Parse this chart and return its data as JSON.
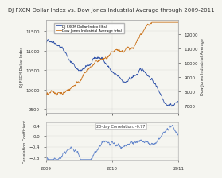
{
  "title": "DJ FXCM Dollar Index vs. Dow Jones Industrial Average through 2009-2011",
  "title_fontsize": 5.5,
  "legend_entries": [
    "DJ FXCM Dollar Index (lhs)",
    "Dow Jones Industrial Average (rhs)"
  ],
  "dollar_color": "#3355aa",
  "dow_color": "#cc7722",
  "corr_color": "#6688cc",
  "ylabel_left": "DJ FXCM Dollar Index",
  "ylabel_right": "Dow Jones Industrial Average",
  "ylabel_corr": "Correlation Coefficient",
  "xlabel": "",
  "dollar_ylim": [
    9400,
    11800
  ],
  "dow_ylim": [
    6500,
    13000
  ],
  "corr_ylim": [
    -0.9,
    0.5
  ],
  "dollar_yticks": [
    9500,
    10000,
    10500,
    11000,
    11500
  ],
  "dow_yticks": [
    7000,
    8000,
    9000,
    10000,
    11000,
    12000
  ],
  "corr_yticks": [
    -0.8,
    -0.4,
    0.0,
    0.4
  ],
  "xtick_labels": [
    "2009",
    "2010",
    "2011"
  ],
  "annotation": "20-day Correlation: -0.77",
  "background_color": "#f5f5f0",
  "grid_color": "#cccccc",
  "font_color": "#333333"
}
